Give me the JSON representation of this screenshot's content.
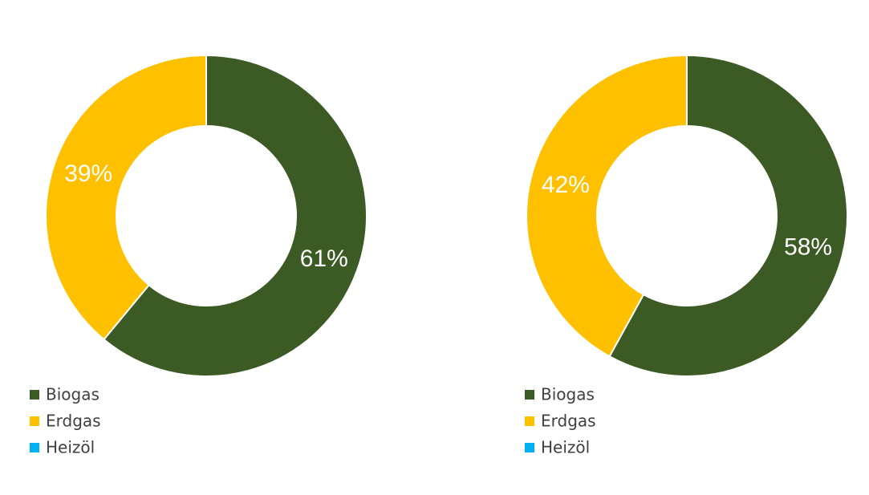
{
  "chart_data": [
    {
      "type": "doughnut",
      "categories": [
        "Biogas",
        "Erdgas",
        "Heizöl"
      ],
      "values": [
        61,
        39,
        0
      ],
      "value_labels": [
        "61%",
        "39%",
        null
      ],
      "colors": [
        "#3b5a24",
        "#ffc000",
        "#00b0f0"
      ],
      "legend": "bottom-left"
    },
    {
      "type": "doughnut",
      "categories": [
        "Biogas",
        "Erdgas",
        "Heizöl"
      ],
      "values": [
        58,
        42,
        0
      ],
      "value_labels": [
        "58%",
        "42%",
        null
      ],
      "colors": [
        "#3b5a24",
        "#ffc000",
        "#00b0f0"
      ],
      "legend": "bottom-left"
    }
  ]
}
